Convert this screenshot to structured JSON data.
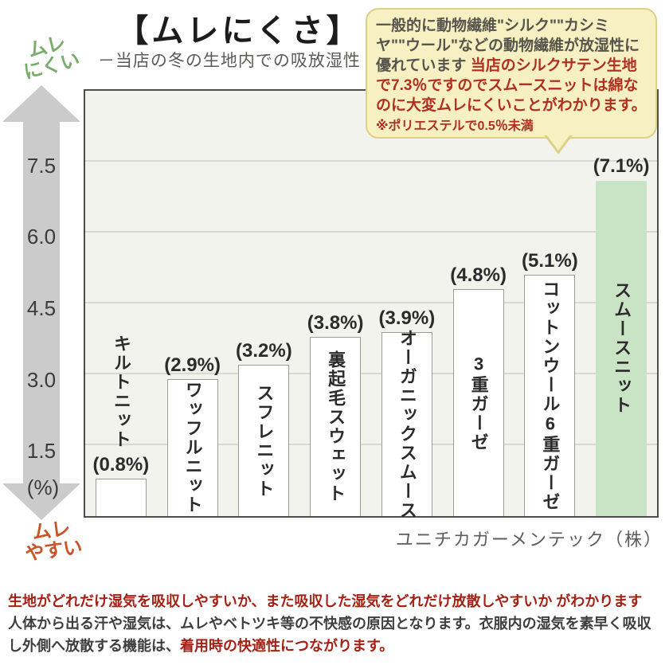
{
  "bubble": {
    "segments": [
      {
        "text": "一般的に動物繊維\"シルク\"\"カシミヤ\"\"ウール\"などの動物繊維が放湿性に優れています ",
        "color": "gray",
        "br": false
      },
      {
        "text": "当店のシルクサテン生地で7.3％ですのでスムースニットは綿なのに大変ムレにくいことがわかります。",
        "color": "red",
        "br": false
      },
      {
        "text": "　　※ポリエステルで0.5％未満",
        "color": "red_small",
        "br": false
      }
    ],
    "background": "#f6f0c3",
    "border_color": "#ddd089",
    "text_gray": "#56544b",
    "text_red": "#b12f20"
  },
  "chart_data": {
    "type": "bar",
    "title": "【ムレにくさ】",
    "subtitle": "－当店の冬の生地内での吸放湿性 -",
    "unit_label": "(%)",
    "ylim": [
      0,
      9
    ],
    "grid": "horizontal",
    "legend_position": "none",
    "yticks": [
      {
        "label": "1.5",
        "value": 1.5
      },
      {
        "label": "3.0",
        "value": 3.0
      },
      {
        "label": "4.5",
        "value": 4.5
      },
      {
        "label": "6.0",
        "value": 6.0
      },
      {
        "label": "7.5",
        "value": 7.5
      }
    ],
    "axis_labels": {
      "high": [
        "ムレ",
        "にくい"
      ],
      "low": [
        "ムレ",
        "やすい"
      ]
    },
    "categories": [
      "キルトニット",
      "ワッフルニット",
      "スフレニット",
      "裏起毛スウェット",
      "オーガニックスムース",
      "3重ガーゼ",
      "コットンウール6重ガーゼ",
      "スムースニット"
    ],
    "values": [
      0.8,
      2.9,
      3.2,
      3.8,
      3.9,
      4.8,
      5.1,
      7.1
    ],
    "bars": [
      {
        "name": "キルトニット",
        "value": 0.8,
        "value_label": "(0.8%)",
        "label_position": "above",
        "highlight": false
      },
      {
        "name": "ワッフルニット",
        "value": 2.9,
        "value_label": "(2.9%)",
        "label_position": "inside",
        "highlight": false
      },
      {
        "name": "スフレニット",
        "value": 3.2,
        "value_label": "(3.2%)",
        "label_position": "inside",
        "highlight": false
      },
      {
        "name": "裏起毛スウェット",
        "value": 3.8,
        "value_label": "(3.8%)",
        "label_position": "inside",
        "highlight": false
      },
      {
        "name": "オーガニックスムース",
        "value": 3.9,
        "value_label": "(3.9%)",
        "label_position": "inside",
        "highlight": false
      },
      {
        "name": "3重ガーゼ",
        "value": 4.8,
        "value_label": "(4.8%)",
        "label_position": "inside",
        "highlight": false
      },
      {
        "name": "コットンウール6重ガーゼ",
        "value": 5.1,
        "value_label": "(5.1%)",
        "label_position": "inside",
        "highlight": false
      },
      {
        "name": "スムースニット",
        "value": 7.1,
        "value_label": "(7.1%)",
        "label_position": "inside",
        "highlight": true
      }
    ],
    "bar_color": "#ffffff",
    "highlight_color": "#c9e4c4",
    "plot_background": "#f3f3ee",
    "source": "ユニチカガーメンテック（株）"
  },
  "colors": {
    "axis_high_green": "#7aad6c",
    "axis_low_orange": "#c8562b",
    "arrow_gray": "#cbcbcb",
    "footer_red": "#a42116",
    "footer_gray": "#3e3e3e"
  },
  "footer": {
    "segments": [
      {
        "text": "生地がどれだけ湿気を吸収しやすいか、また吸収した湿気をどれだけ放散しやすいか がわかります",
        "color": "red",
        "br": true
      },
      {
        "text": "人体から出る汗や湿気は、ムレやベトツキ等の不快感の原因となります。衣服内の湿気を素早く吸収",
        "color": "gray",
        "br": true
      },
      {
        "text": "し外側へ放散する機能は、",
        "color": "gray",
        "br": false
      },
      {
        "text": "着用時の快適性につながります。",
        "color": "red",
        "br": false
      }
    ]
  }
}
